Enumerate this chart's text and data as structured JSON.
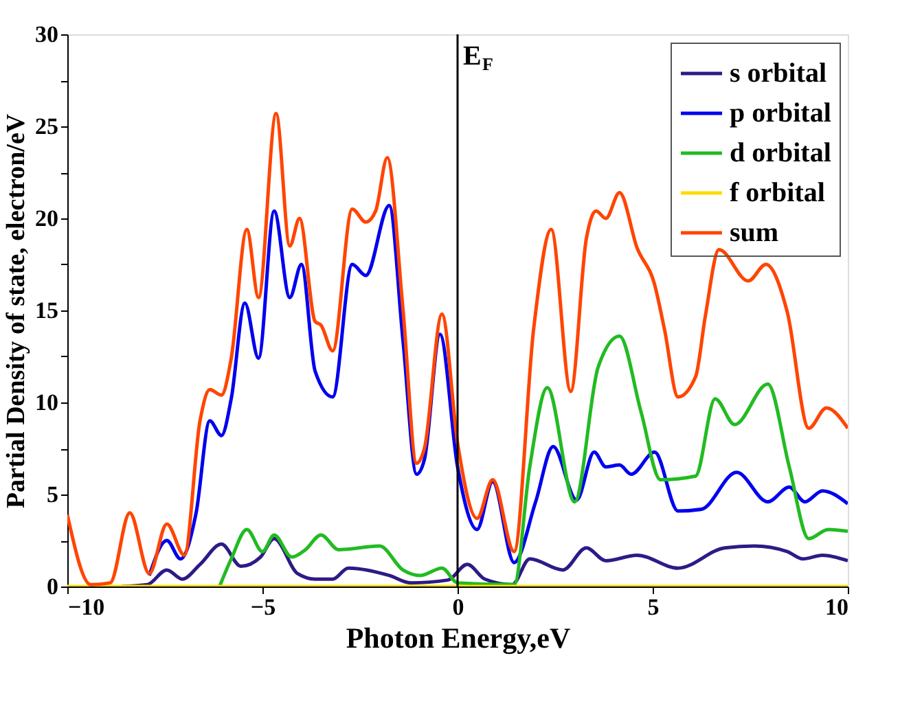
{
  "chart_data": {
    "type": "line",
    "xlabel": "Photon Energy,eV",
    "ylabel": "Partial Density of state, electron/eV",
    "xlim": [
      -10,
      10
    ],
    "ylim": [
      0,
      30
    ],
    "xticks": [
      {
        "value": -10,
        "label": "−10"
      },
      {
        "value": -5,
        "label": "−5"
      },
      0,
      5,
      10
    ],
    "yticks": [
      0,
      {
        "value": 2.5,
        "label": null
      },
      5,
      {
        "value": 7.5,
        "label": null
      },
      10,
      {
        "value": 12.5,
        "label": null
      },
      15,
      {
        "value": 17.5,
        "label": null
      },
      20,
      {
        "value": 22.5,
        "label": null
      },
      25,
      {
        "value": 27.5,
        "label": null
      },
      30
    ],
    "grid": false,
    "legend": "top right",
    "line_style": "solid",
    "marker": "none",
    "ref_lines": [
      {
        "axis": "x",
        "value": 0,
        "label": "E$_{F}$",
        "color": "#000000"
      }
    ],
    "series": [
      {
        "name": "s orbital",
        "color": "#2e1a87",
        "x": [
          -8.6,
          -7.95,
          -7.45,
          -7.05,
          -6.6,
          -6.05,
          -5.55,
          -5.05,
          -4.7,
          -4.1,
          -3.65,
          -3.2,
          -2.8,
          -1.75,
          -1.2,
          -0.25,
          0.25,
          0.7,
          1.4,
          1.85,
          2.7,
          3.3,
          3.8,
          4.6,
          5.65,
          6.85,
          7.6,
          8.45,
          8.85,
          9.35,
          10
        ],
        "values": [
          0,
          0.1,
          0.9,
          0.4,
          1.2,
          2.3,
          1.1,
          1.6,
          2.6,
          0.7,
          0.4,
          0.4,
          1.0,
          0.6,
          0.2,
          0.35,
          1.2,
          0.4,
          0.1,
          1.5,
          0.9,
          2.1,
          1.4,
          1.7,
          1.0,
          2.1,
          2.2,
          1.9,
          1.5,
          1.7,
          1.4
        ]
      },
      {
        "name": "p orbital",
        "color": "#0000ee",
        "x": [
          -7.9,
          -7.45,
          -7.1,
          -6.7,
          -6.35,
          -6.05,
          -5.8,
          -5.45,
          -5.1,
          -4.7,
          -4.3,
          -4.0,
          -3.65,
          -3.2,
          -2.7,
          -2.35,
          -1.75,
          -1.4,
          -1.05,
          -0.85,
          -0.45,
          0,
          0.5,
          0.9,
          1.45,
          2.0,
          2.45,
          3.05,
          3.5,
          3.8,
          4.15,
          4.45,
          5.05,
          5.65,
          6.25,
          7.15,
          7.95,
          8.5,
          8.9,
          9.35,
          10
        ],
        "values": [
          0.6,
          2.5,
          1.5,
          4.0,
          9.0,
          8.2,
          10.2,
          15.4,
          12.4,
          20.4,
          15.7,
          17.5,
          11.7,
          10.3,
          17.5,
          16.9,
          20.7,
          13.4,
          6.1,
          6.9,
          13.7,
          6.5,
          3.1,
          5.7,
          1.3,
          4.6,
          7.6,
          4.7,
          7.3,
          6.5,
          6.6,
          6.1,
          7.3,
          4.1,
          4.2,
          6.2,
          4.6,
          5.4,
          4.6,
          5.2,
          4.5
        ]
      },
      {
        "name": "d orbital",
        "color": "#22bb22",
        "x": [
          -6.1,
          -5.8,
          -5.4,
          -5.0,
          -4.7,
          -4.25,
          -3.9,
          -3.5,
          -3.05,
          -2.0,
          -1.4,
          -0.95,
          -0.4,
          0,
          1.45,
          1.85,
          2.3,
          3.0,
          3.6,
          4.15,
          4.7,
          5.2,
          6.1,
          6.6,
          7.1,
          7.95,
          8.5,
          9.0,
          9.5,
          10
        ],
        "values": [
          0,
          1.5,
          3.1,
          1.9,
          2.8,
          1.6,
          2.0,
          2.8,
          2.0,
          2.2,
          0.9,
          0.6,
          1.0,
          0.2,
          0.1,
          6.5,
          10.8,
          4.6,
          11.9,
          13.6,
          9.5,
          5.8,
          6.0,
          10.2,
          8.8,
          11.0,
          6.5,
          2.6,
          3.1,
          3.0
        ]
      },
      {
        "name": "f orbital",
        "color": "#ffdd00",
        "x": [
          -10,
          10
        ],
        "values": [
          0,
          0
        ]
      },
      {
        "name": "sum",
        "color": "#ff4500",
        "x": [
          -10,
          -9.4,
          -8.9,
          -8.4,
          -7.9,
          -7.45,
          -7.0,
          -6.6,
          -6.35,
          -6.05,
          -5.8,
          -5.4,
          -5.1,
          -4.65,
          -4.3,
          -4.05,
          -3.65,
          -3.5,
          -3.2,
          -2.7,
          -2.35,
          -2.1,
          -1.8,
          -1.4,
          -1.05,
          -0.85,
          -0.4,
          0,
          0.5,
          0.9,
          1.45,
          1.95,
          2.4,
          2.9,
          3.3,
          3.55,
          3.8,
          4.15,
          4.6,
          5.05,
          5.3,
          5.65,
          6.1,
          6.35,
          6.7,
          7.45,
          7.9,
          8.45,
          9.0,
          9.45,
          10
        ],
        "values": [
          3.9,
          0.1,
          0.2,
          4.0,
          0.7,
          3.4,
          1.7,
          9.0,
          10.7,
          10.4,
          12.4,
          19.4,
          15.7,
          25.7,
          18.5,
          20.0,
          14.4,
          14.2,
          12.8,
          20.5,
          19.8,
          20.4,
          23.3,
          15.1,
          6.7,
          7.5,
          14.8,
          7.8,
          3.7,
          5.8,
          1.9,
          14.0,
          19.4,
          10.6,
          18.9,
          20.4,
          20.0,
          21.4,
          18.4,
          16.4,
          14.0,
          10.3,
          11.4,
          14.7,
          18.3,
          16.6,
          17.5,
          14.9,
          8.6,
          9.7,
          8.6
        ]
      }
    ]
  }
}
